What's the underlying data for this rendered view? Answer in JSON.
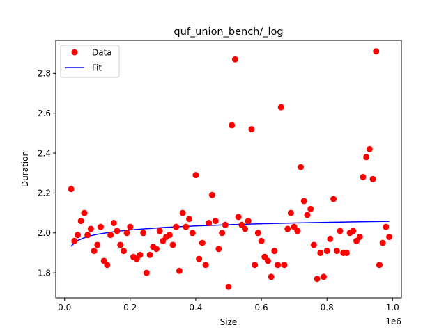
{
  "chart_data": {
    "type": "scatter",
    "title": "quf_union_bench/_log",
    "xlabel": "Size",
    "ylabel": "Duration",
    "x_offset_label": "1e6",
    "xlim": [
      -0.027,
      1.027
    ],
    "ylim": [
      1.675,
      2.965
    ],
    "xticks": [
      0.0,
      0.2,
      0.4,
      0.6,
      0.8,
      1.0
    ],
    "xtick_labels": [
      "0.0",
      "0.2",
      "0.4",
      "0.6",
      "0.8",
      "1.0"
    ],
    "yticks": [
      1.8,
      2.0,
      2.2,
      2.4,
      2.6,
      2.8
    ],
    "ytick_labels": [
      "1.8",
      "2.0",
      "2.2",
      "2.4",
      "2.6",
      "2.8"
    ],
    "legend": {
      "position": "upper-left",
      "entries": [
        "Data",
        "Fit"
      ]
    },
    "colors": {
      "data": "#ff0000",
      "fit": "#0000ff"
    },
    "series": [
      {
        "name": "Data",
        "kind": "scatter",
        "x": [
          0.02,
          0.03,
          0.04,
          0.05,
          0.06,
          0.07,
          0.08,
          0.09,
          0.1,
          0.11,
          0.12,
          0.13,
          0.14,
          0.15,
          0.16,
          0.17,
          0.18,
          0.19,
          0.2,
          0.21,
          0.22,
          0.23,
          0.24,
          0.25,
          0.26,
          0.27,
          0.28,
          0.29,
          0.3,
          0.31,
          0.32,
          0.33,
          0.34,
          0.35,
          0.36,
          0.37,
          0.38,
          0.39,
          0.4,
          0.41,
          0.42,
          0.43,
          0.44,
          0.45,
          0.46,
          0.47,
          0.48,
          0.49,
          0.5,
          0.51,
          0.52,
          0.53,
          0.54,
          0.55,
          0.56,
          0.57,
          0.58,
          0.59,
          0.6,
          0.61,
          0.62,
          0.63,
          0.64,
          0.65,
          0.66,
          0.67,
          0.68,
          0.69,
          0.7,
          0.71,
          0.72,
          0.73,
          0.74,
          0.75,
          0.76,
          0.77,
          0.78,
          0.79,
          0.8,
          0.81,
          0.82,
          0.83,
          0.84,
          0.85,
          0.86,
          0.87,
          0.88,
          0.89,
          0.9,
          0.91,
          0.92,
          0.93,
          0.94,
          0.95,
          0.96,
          0.97,
          0.98,
          0.99
        ],
        "y": [
          2.22,
          1.96,
          1.99,
          2.06,
          2.1,
          1.99,
          2.02,
          1.91,
          1.94,
          2.03,
          1.86,
          1.84,
          1.99,
          2.05,
          2.01,
          1.94,
          1.91,
          2.0,
          2.03,
          1.88,
          1.87,
          1.89,
          2.0,
          1.8,
          1.89,
          1.93,
          1.92,
          2.01,
          1.96,
          1.98,
          1.99,
          1.94,
          2.03,
          1.81,
          2.1,
          2.03,
          2.07,
          2.0,
          2.29,
          1.87,
          1.95,
          1.84,
          2.05,
          2.19,
          2.06,
          1.92,
          2.0,
          2.04,
          1.73,
          2.54,
          2.87,
          2.08,
          2.04,
          2.02,
          2.06,
          2.52,
          1.84,
          2.0,
          1.96,
          1.88,
          1.86,
          1.78,
          1.91,
          1.84,
          2.63,
          1.84,
          2.02,
          2.1,
          2.03,
          2.01,
          2.33,
          2.16,
          2.09,
          2.12,
          1.94,
          1.77,
          1.9,
          1.78,
          1.91,
          1.97,
          2.17,
          1.91,
          2.01,
          1.9,
          1.9,
          2.0,
          2.01,
          1.96,
          1.98,
          2.28,
          2.38,
          2.42,
          2.27,
          2.91,
          1.84,
          1.95,
          2.03,
          1.98
        ]
      },
      {
        "name": "Fit",
        "kind": "line",
        "x": [
          0.02,
          0.03,
          0.04,
          0.06,
          0.08,
          0.1,
          0.15,
          0.2,
          0.3,
          0.4,
          0.5,
          0.6,
          0.7,
          0.8,
          0.9,
          0.99
        ],
        "y": [
          1.933,
          1.95,
          1.962,
          1.976,
          1.986,
          1.993,
          2.006,
          2.015,
          2.027,
          2.035,
          2.041,
          2.046,
          2.05,
          2.053,
          2.056,
          2.058
        ]
      }
    ]
  }
}
